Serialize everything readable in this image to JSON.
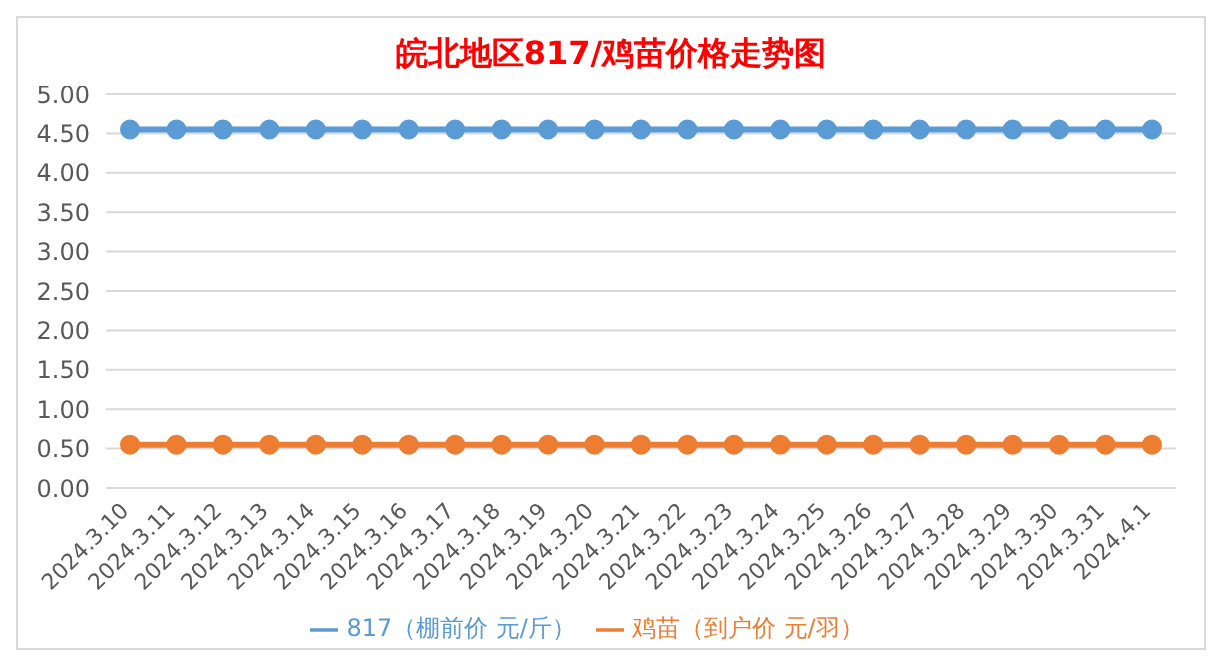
{
  "chart_data": {
    "type": "line",
    "title": "皖北地区817/鸡苗价格走势图",
    "categories": [
      "2024.3.10",
      "2024.3.11",
      "2024.3.12",
      "2024.3.13",
      "2024.3.14",
      "2024.3.15",
      "2024.3.16",
      "2024.3.17",
      "2024.3.18",
      "2024.3.19",
      "2024.3.20",
      "2024.3.21",
      "2024.3.22",
      "2024.3.23",
      "2024.3.24",
      "2024.3.25",
      "2024.3.26",
      "2024.3.27",
      "2024.3.28",
      "2024.3.29",
      "2024.3.30",
      "2024.3.31",
      "2024.4.1"
    ],
    "series": [
      {
        "name": "817（棚前价 元/斤）",
        "color": "#5b9bd5",
        "values": [
          4.55,
          4.55,
          4.55,
          4.55,
          4.55,
          4.55,
          4.55,
          4.55,
          4.55,
          4.55,
          4.55,
          4.55,
          4.55,
          4.55,
          4.55,
          4.55,
          4.55,
          4.55,
          4.55,
          4.55,
          4.55,
          4.55,
          4.55
        ]
      },
      {
        "name": "鸡苗（到户价 元/羽）",
        "color": "#ed7d31",
        "values": [
          0.55,
          0.55,
          0.55,
          0.55,
          0.55,
          0.55,
          0.55,
          0.55,
          0.55,
          0.55,
          0.55,
          0.55,
          0.55,
          0.55,
          0.55,
          0.55,
          0.55,
          0.55,
          0.55,
          0.55,
          0.55,
          0.55,
          0.55
        ]
      }
    ],
    "ylim": [
      0,
      5
    ],
    "yticks": [
      {
        "value": 0,
        "label": "0.00"
      },
      {
        "value": 0.5,
        "label": "0.50"
      },
      {
        "value": 1,
        "label": "1.00"
      },
      {
        "value": 1.5,
        "label": "1.50"
      },
      {
        "value": 2,
        "label": "2.00"
      },
      {
        "value": 2.5,
        "label": "2.50"
      },
      {
        "value": 3,
        "label": "3.00"
      },
      {
        "value": 3.5,
        "label": "3.50"
      },
      {
        "value": 4,
        "label": "4.00"
      },
      {
        "value": 4.5,
        "label": "4.50"
      },
      {
        "value": 5,
        "label": "5.00"
      }
    ],
    "grid": "y",
    "legend": "bottom",
    "marker": "circle",
    "line_style": "solid"
  }
}
